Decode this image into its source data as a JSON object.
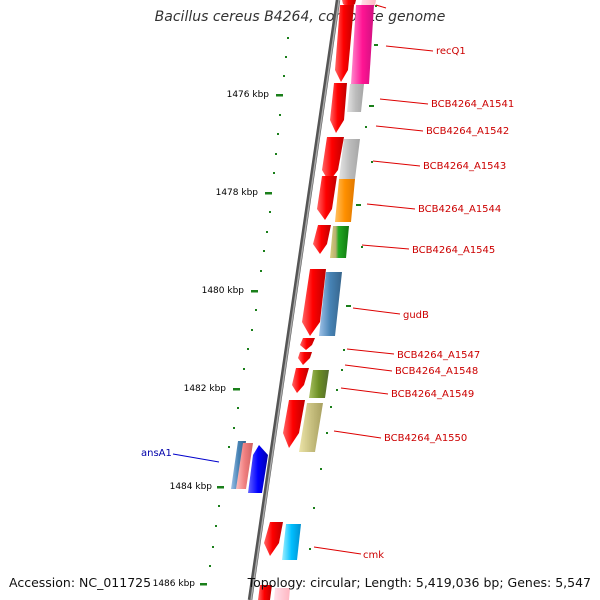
{
  "title": "Bacillus cereus B4264, complete genome",
  "footer": {
    "accession": "Accession: NC_011725",
    "topology": "Topology: circular; Length: 5,419,036 bp; Genes: 5,547"
  },
  "scale_labels": [
    "1476 kbp",
    "1478 kbp",
    "1480 kbp",
    "1482 kbp",
    "1484 kbp",
    "1486 kbp"
  ],
  "gene_labels": [
    {
      "text": "recQ1",
      "color": "#cc0000"
    },
    {
      "text": "BCB4264_A1541",
      "color": "#cc0000"
    },
    {
      "text": "BCB4264_A1542",
      "color": "#cc0000"
    },
    {
      "text": "BCB4264_A1543",
      "color": "#cc0000"
    },
    {
      "text": "BCB4264_A1544",
      "color": "#cc0000"
    },
    {
      "text": "BCB4264_A1545",
      "color": "#cc0000"
    },
    {
      "text": "gudB",
      "color": "#cc0000"
    },
    {
      "text": "BCB4264_A1547",
      "color": "#cc0000"
    },
    {
      "text": "BCB4264_A1548",
      "color": "#cc0000"
    },
    {
      "text": "BCB4264_A1549",
      "color": "#cc0000"
    },
    {
      "text": "BCB4264_A1550",
      "color": "#cc0000"
    },
    {
      "text": "cmk",
      "color": "#cc0000"
    },
    {
      "text": "ansA1",
      "color": "#0000aa"
    }
  ],
  "colors": {
    "backbone": "#777777",
    "gene_forward": "#ff0000",
    "tick": "#1a7f1a",
    "label_line_red": "#dd0000",
    "label_line_blue": "#0000cc"
  }
}
